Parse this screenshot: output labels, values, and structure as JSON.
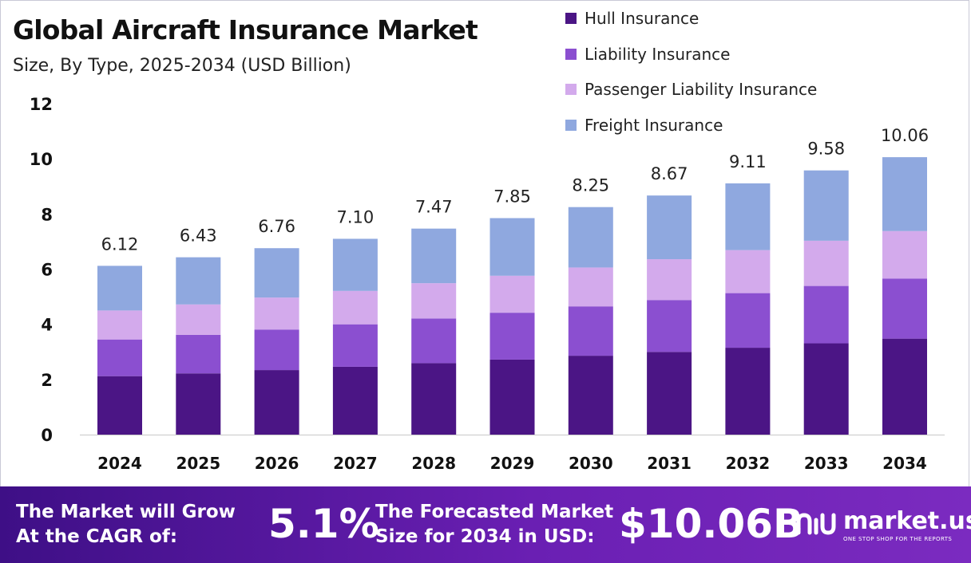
{
  "chart_data": {
    "type": "bar",
    "stacked": true,
    "title": "Global Aircraft Insurance Market",
    "subtitle": "Size, By Type, 2025-2034 (USD Billion)",
    "categories": [
      "2024",
      "2025",
      "2026",
      "2027",
      "2028",
      "2029",
      "2030",
      "2031",
      "2032",
      "2033",
      "2034"
    ],
    "totals": [
      "6.12",
      "6.43",
      "6.76",
      "7.10",
      "7.47",
      "7.85",
      "8.25",
      "8.67",
      "9.11",
      "9.58",
      "10.06"
    ],
    "series": [
      {
        "name": "Hull Insurance",
        "color": "#4b1585",
        "values": [
          2.12,
          2.22,
          2.34,
          2.46,
          2.59,
          2.72,
          2.86,
          3.0,
          3.15,
          3.31,
          3.48
        ]
      },
      {
        "name": "Liability Insurance",
        "color": "#8b4fd0",
        "values": [
          1.33,
          1.4,
          1.47,
          1.54,
          1.62,
          1.7,
          1.79,
          1.88,
          1.98,
          2.08,
          2.18
        ]
      },
      {
        "name": "Passenger Liability Insurance",
        "color": "#d3aaec",
        "values": [
          1.05,
          1.1,
          1.16,
          1.21,
          1.28,
          1.34,
          1.41,
          1.48,
          1.56,
          1.64,
          1.72
        ]
      },
      {
        "name": "Freight Insurance",
        "color": "#8fa8df",
        "values": [
          1.62,
          1.71,
          1.79,
          1.89,
          1.98,
          2.09,
          2.19,
          2.31,
          2.42,
          2.55,
          2.68
        ]
      }
    ],
    "ylim": [
      0,
      12
    ],
    "yticks": [
      "0",
      "2",
      "4",
      "6",
      "8",
      "10",
      "12"
    ],
    "legend_position": "top-right",
    "grid": false
  },
  "footer": {
    "cagr_label": "The Market will Grow At the CAGR of:",
    "cagr_value": "5.1%",
    "forecast_label": "The Forecasted Market Size for 2034 in USD:",
    "forecast_value": "$10.06B",
    "brand_name": "market.us",
    "brand_tagline": "ONE STOP SHOP FOR THE REPORTS",
    "brand_icon": "market-us-logo-icon"
  }
}
